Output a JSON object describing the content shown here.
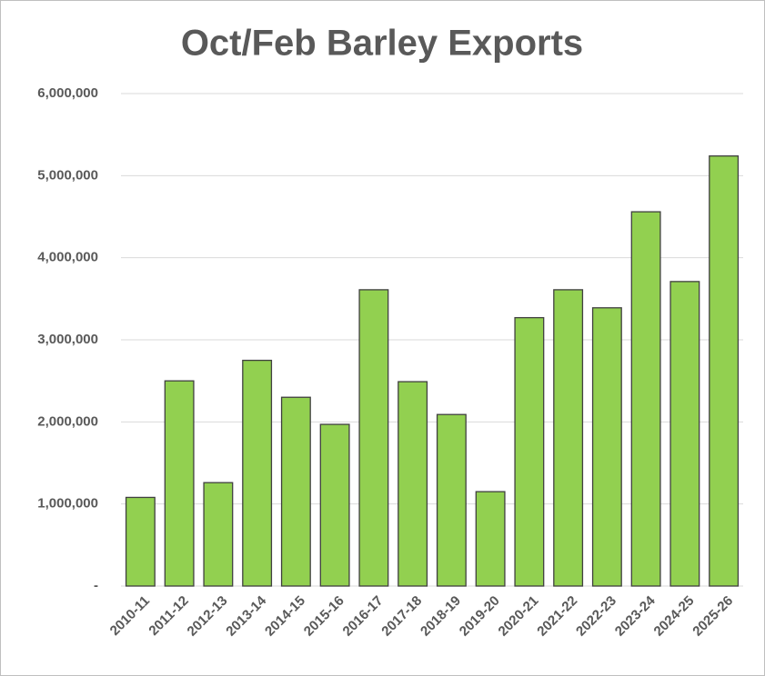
{
  "chart_data": {
    "type": "bar",
    "title": "Oct/Feb Barley Exports",
    "categories": [
      "2010-11",
      "2011-12",
      "2012-13",
      "2013-14",
      "2014-15",
      "2015-16",
      "2016-17",
      "2017-18",
      "2018-19",
      "2019-20",
      "2020-21",
      "2021-22",
      "2022-23",
      "2023-24",
      "2024-25",
      "2025-26"
    ],
    "values": [
      1080000,
      2500000,
      1260000,
      2750000,
      2300000,
      1970000,
      3610000,
      2490000,
      2090000,
      1150000,
      3270000,
      3610000,
      3390000,
      4560000,
      3710000,
      5240000
    ],
    "color": "#92d050",
    "ylim": [
      0,
      6000000
    ],
    "yticks": [
      {
        "value": 0,
        "label": "-"
      },
      {
        "value": 1000000,
        "label": "1,000,000"
      },
      {
        "value": 2000000,
        "label": "2,000,000"
      },
      {
        "value": 3000000,
        "label": "3,000,000"
      },
      {
        "value": 4000000,
        "label": "4,000,000"
      },
      {
        "value": 5000000,
        "label": "5,000,000"
      },
      {
        "value": 6000000,
        "label": "6,000,000"
      }
    ],
    "grid": true
  }
}
